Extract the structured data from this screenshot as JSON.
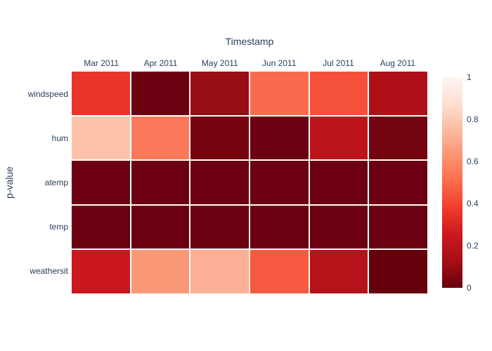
{
  "header": {
    "title": "Timestamp"
  },
  "axes": {
    "y_title": "p-value"
  },
  "colors": {
    "text": "#2a3f5f",
    "background": "#ffffff",
    "grid_gap": "#ffffff"
  },
  "chart_data": {
    "type": "heatmap",
    "title": "Timestamp",
    "x": [
      "Mar 2011",
      "Apr 2011",
      "May 2011",
      "Jun 2011",
      "Jul 2011",
      "Aug 2011"
    ],
    "y": [
      "windspeed",
      "hum",
      "atemp",
      "temp",
      "weathersit"
    ],
    "xlabel": "",
    "ylabel": "p-value",
    "zlim": [
      0,
      1
    ],
    "grid": false,
    "legend_position": "right-colorbar",
    "z": [
      [
        0.36,
        0.01,
        0.1,
        0.5,
        0.43,
        0.14
      ],
      [
        0.78,
        0.55,
        0.03,
        0.01,
        0.2,
        0.03
      ],
      [
        0.01,
        0.01,
        0.01,
        0.01,
        0.01,
        0.01
      ],
      [
        0.01,
        0.01,
        0.01,
        0.01,
        0.01,
        0.01
      ],
      [
        0.25,
        0.63,
        0.72,
        0.46,
        0.18,
        0.0
      ]
    ],
    "cell_colors": [
      [
        "#e9342b",
        "#6a0010",
        "#970e14",
        "#fa6b4d",
        "#f5503c",
        "#ad1016"
      ],
      [
        "#fcc3aa",
        "#fb795b",
        "#75040f",
        "#6a0010",
        "#bc141a",
        "#73030f"
      ],
      [
        "#6c0010",
        "#6c0010",
        "#6c0010",
        "#6c0010",
        "#6c0010",
        "#6c0010"
      ],
      [
        "#6b0010",
        "#6b0010",
        "#6b0010",
        "#6b0010",
        "#6b0010",
        "#6b0010"
      ],
      [
        "#c9171d",
        "#f99877",
        "#fbb097",
        "#f65a40",
        "#b5131a",
        "#67000d"
      ]
    ],
    "colorbar": {
      "tick_labels": [
        "1",
        "0.8",
        "0.6",
        "0.4",
        "0.2",
        "0"
      ],
      "tick_values": [
        1,
        0.8,
        0.6,
        0.4,
        0.2,
        0
      ],
      "gradient_top_to_bottom": [
        "#fff5f0",
        "#fee0d2",
        "#fcbba1",
        "#fc9272",
        "#fb6a4a",
        "#ef3b2c",
        "#cb181d",
        "#a50f15",
        "#67000d"
      ]
    }
  }
}
